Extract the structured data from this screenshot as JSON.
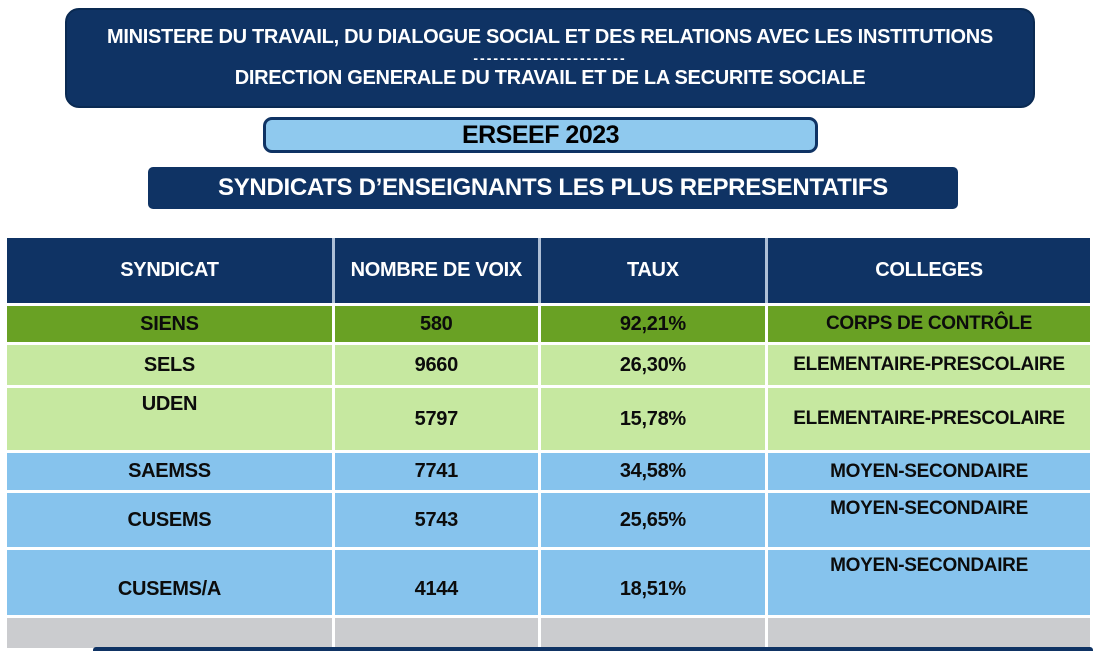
{
  "colors": {
    "navy": "#0F3364",
    "green_dark_row": "#69A124",
    "green_light_row": "#C6E8A0",
    "blue_row": "#86C3ED",
    "gray_row": "#CBCCCF",
    "erseef_fill": "#8FC9EE",
    "text_on_navy": "#FFFFFF",
    "text_on_rows": "#0C0C0C"
  },
  "header": {
    "line1": "MINISTERE DU TRAVAIL, DU DIALOGUE SOCIAL ET DES RELATIONS AVEC LES INSTITUTIONS",
    "separator": "-----------------------",
    "line2": "DIRECTION GENERALE DU TRAVAIL ET DE LA SECURITE SOCIALE"
  },
  "banner": {
    "label": "ERSEEF 2023"
  },
  "subtitle": {
    "label": "SYNDICATS D’ENSEIGNANTS LES PLUS REPRESENTATIFS"
  },
  "table": {
    "columns": [
      "SYNDICAT",
      "NOMBRE DE VOIX",
      "TAUX",
      "COLLEGES"
    ],
    "rows": [
      {
        "syndicat": "SIENS",
        "voix": "580",
        "taux": "92,21%",
        "college": "CORPS DE CONTRÔLE",
        "theme": "green-dark"
      },
      {
        "syndicat": "SELS",
        "voix": "9660",
        "taux": "26,30%",
        "college": "ELEMENTAIRE-PRESCOLAIRE",
        "theme": "green-light"
      },
      {
        "syndicat": "UDEN",
        "voix": "5797",
        "taux": "15,78%",
        "college": "ELEMENTAIRE-PRESCOLAIRE",
        "theme": "green-light"
      },
      {
        "syndicat": "SAEMSS",
        "voix": "7741",
        "taux": "34,58%",
        "college": "MOYEN-SECONDAIRE",
        "theme": "blue"
      },
      {
        "syndicat": "CUSEMS",
        "voix": "5743",
        "taux": "25,65%",
        "college": "MOYEN-SECONDAIRE",
        "theme": "blue"
      },
      {
        "syndicat": "CUSEMS/A",
        "voix": "4144",
        "taux": "18,51%",
        "college": "MOYEN-SECONDAIRE",
        "theme": "blue"
      },
      {
        "syndicat": "",
        "voix": "",
        "taux": "",
        "college": "",
        "theme": "gray"
      }
    ]
  }
}
